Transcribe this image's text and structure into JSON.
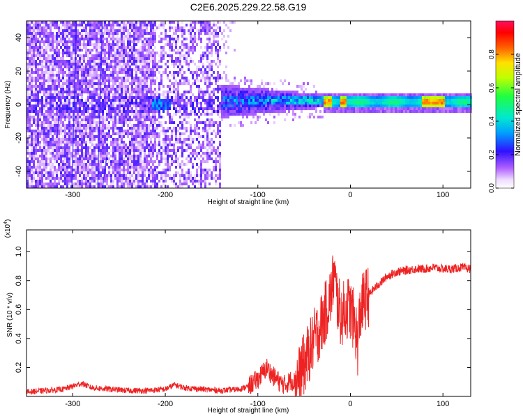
{
  "title": "C2E6.2025.229.22.58.G19",
  "chart_data": [
    {
      "type": "heatmap",
      "xlabel": "Height of straight line (km)",
      "ylabel": "Frequency (Hz)",
      "xlim": [
        -350,
        130
      ],
      "ylim": [
        -50,
        50
      ],
      "xticks": [
        -300,
        -200,
        -100,
        0,
        100
      ],
      "yticks": [
        -40,
        -20,
        0,
        20,
        40
      ],
      "colorbar": {
        "label": "Normalized spectral amplitude",
        "range": [
          0,
          1
        ],
        "ticks": [
          0.0,
          0.2,
          0.4,
          0.6,
          0.8
        ]
      },
      "features": {
        "noise_region_x": [
          -350,
          -140
        ],
        "transition_region_x": [
          -140,
          -30
        ],
        "signal_band_x": [
          -30,
          130
        ],
        "signal_band_center_hz": 1.5,
        "signal_band_halfwidth_hz": 3.5
      }
    },
    {
      "type": "line",
      "xlabel": "Height of straight line (km)",
      "ylabel": "SNR (10 * v/v)",
      "yscale_label": "(x10",
      "yscale_exp": "4",
      "xlim": [
        -350,
        130
      ],
      "ylim": [
        0,
        1.15
      ],
      "xticks": [
        -300,
        -200,
        -100,
        0,
        100
      ],
      "yticks": [
        0.2,
        0.4,
        0.6,
        0.8,
        1.0
      ],
      "series": [
        {
          "color": "#ee2222",
          "x": [
            -350,
            -330,
            -310,
            -300,
            -290,
            -280,
            -260,
            -240,
            -220,
            -200,
            -190,
            -180,
            -160,
            -140,
            -120,
            -110,
            -100,
            -95,
            -90,
            -85,
            -80,
            -75,
            -70,
            -65,
            -60,
            -55,
            -50,
            -45,
            -40,
            -35,
            -30,
            -25,
            -20,
            -18,
            -15,
            -12,
            -10,
            -8,
            -5,
            -2,
            0,
            5,
            8,
            10,
            12,
            15,
            20,
            25,
            30,
            35,
            40,
            50,
            60,
            70,
            80,
            90,
            100,
            110,
            120,
            130
          ],
          "y": [
            0.03,
            0.04,
            0.05,
            0.07,
            0.09,
            0.06,
            0.05,
            0.04,
            0.04,
            0.05,
            0.08,
            0.06,
            0.05,
            0.04,
            0.05,
            0.07,
            0.12,
            0.16,
            0.2,
            0.15,
            0.12,
            0.09,
            0.08,
            0.11,
            0.1,
            0.14,
            0.22,
            0.3,
            0.38,
            0.45,
            0.52,
            0.62,
            0.72,
            0.85,
            0.7,
            0.6,
            0.55,
            0.58,
            0.6,
            0.62,
            0.6,
            0.5,
            0.35,
            0.55,
            0.62,
            0.66,
            0.7,
            0.74,
            0.77,
            0.8,
            0.83,
            0.86,
            0.87,
            0.88,
            0.88,
            0.89,
            0.88,
            0.88,
            0.89,
            0.88
          ]
        }
      ]
    }
  ]
}
